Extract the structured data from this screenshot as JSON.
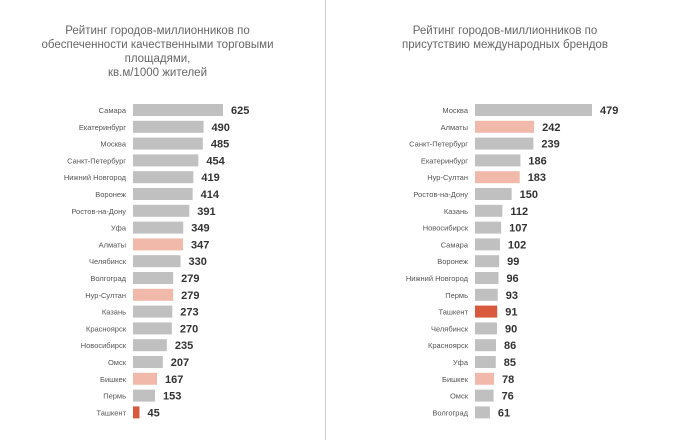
{
  "colors": {
    "default": "#c0c0c0",
    "highlight": "#f0b9aa",
    "focus": "#d9593c"
  },
  "chart_data": [
    {
      "type": "bar",
      "orientation": "horizontal",
      "title": "Рейтинг городов-миллионников по обеспеченности качественными торговыми площадями, кв.м/1000 жителей",
      "title_lines": [
        "Рейтинг городов-миллионников по",
        "обеспеченности качественными торговыми",
        "площадями,",
        "кв.м/1000 жителей"
      ],
      "categories": [
        "Самара",
        "Екатеринбург",
        "Москва",
        "Санкт-Петербург",
        "Нижний Новгород",
        "Воронеж",
        "Ростов-на-Дону",
        "Уфа",
        "Алматы",
        "Челябинск",
        "Волгоград",
        "Нур-Султан",
        "Казань",
        "Красноярск",
        "Новосибирск",
        "Омск",
        "Бишкек",
        "Пермь",
        "Ташкент"
      ],
      "values": [
        625,
        490,
        485,
        454,
        419,
        414,
        391,
        349,
        347,
        330,
        279,
        279,
        273,
        270,
        235,
        207,
        167,
        153,
        45
      ],
      "highlight": [
        "Алматы",
        "Нур-Султан",
        "Бишкек"
      ],
      "focus": [
        "Ташкент"
      ]
    },
    {
      "type": "bar",
      "orientation": "horizontal",
      "title": "Рейтинг городов-миллионников по присутствию международных брендов",
      "title_lines": [
        "Рейтинг городов-миллионников по",
        "присутствию международных брендов"
      ],
      "categories": [
        "Москва",
        "Алматы",
        "Санкт-Петербург",
        "Екатеринбург",
        "Нур-Султан",
        "Ростов-на-Дону",
        "Казань",
        "Новосибирск",
        "Самара",
        "Воронеж",
        "Нижний Новгород",
        "Пермь",
        "Ташкент",
        "Челябинск",
        "Красноярск",
        "Уфа",
        "Бишкек",
        "Омск",
        "Волгоград"
      ],
      "values": [
        479,
        242,
        239,
        186,
        183,
        150,
        112,
        107,
        102,
        99,
        96,
        93,
        91,
        90,
        86,
        85,
        78,
        76,
        61
      ],
      "highlight": [
        "Алматы",
        "Нур-Султан",
        "Бишкек"
      ],
      "focus": [
        "Ташкент"
      ]
    }
  ]
}
